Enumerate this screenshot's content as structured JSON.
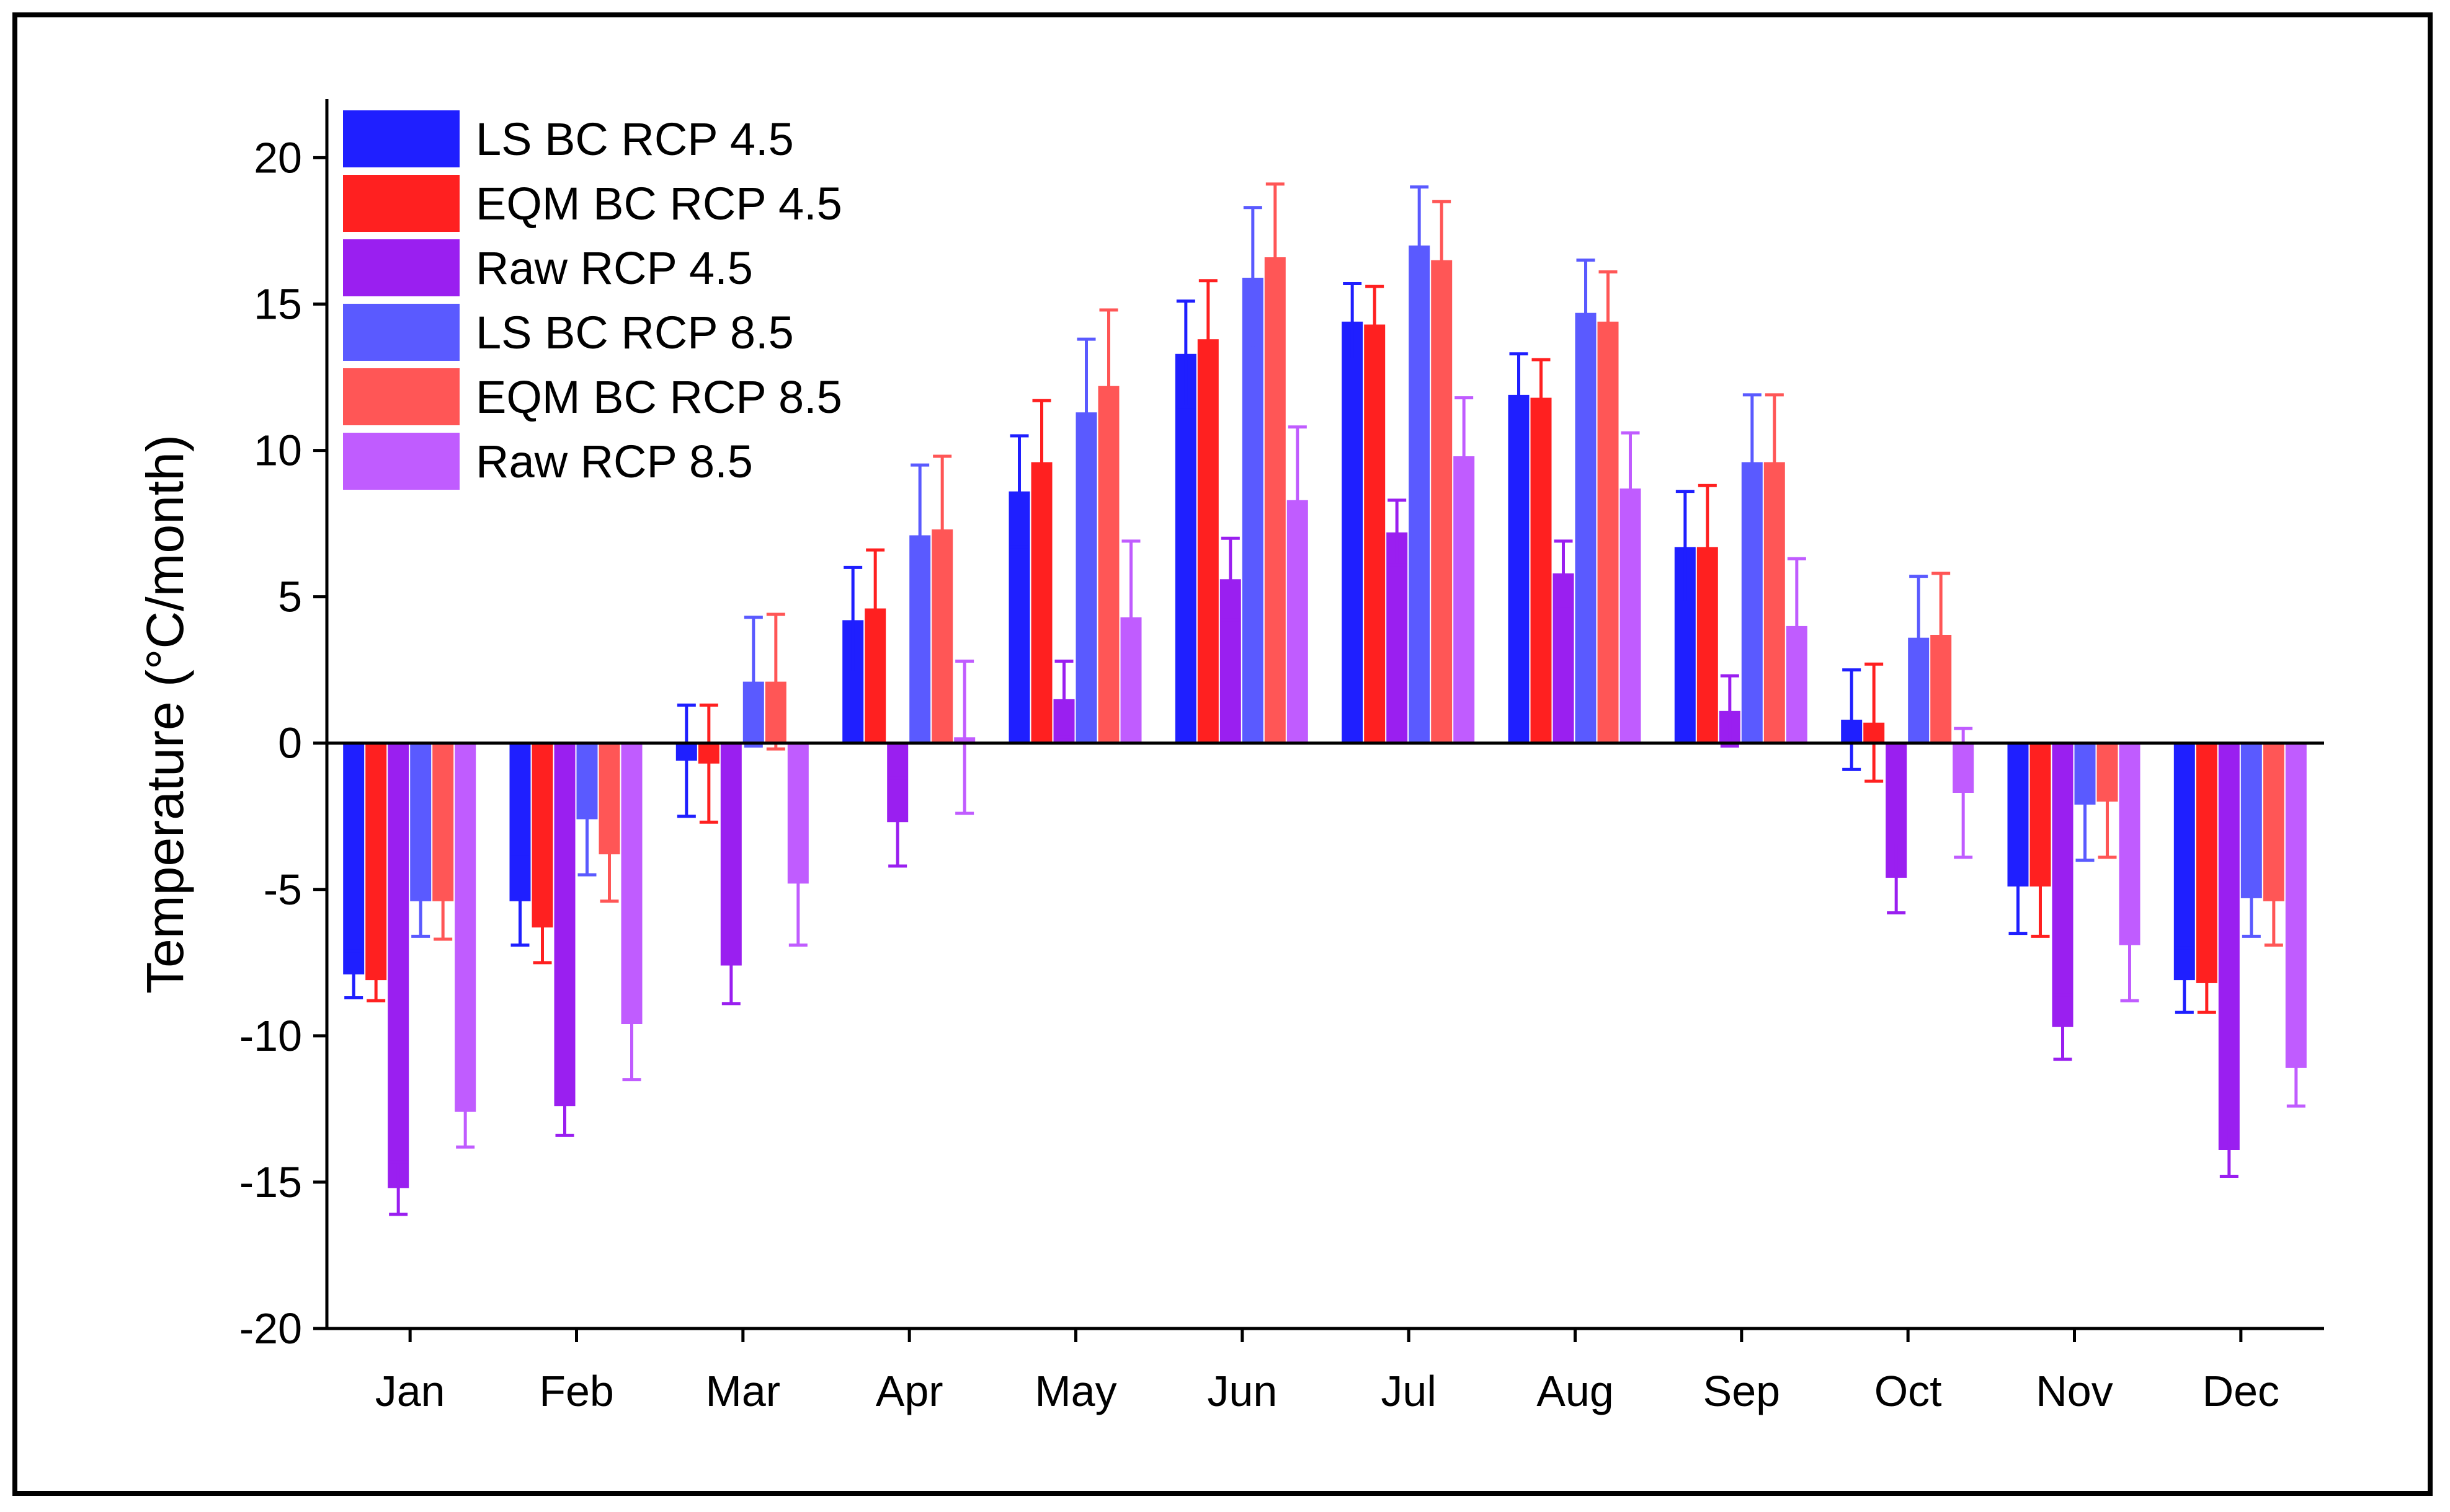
{
  "chart_data": {
    "type": "bar",
    "ylabel": "Temperature (°C/month)",
    "xlabel": "",
    "ylim": [
      -20,
      22
    ],
    "yticks": [
      -20,
      -15,
      -10,
      -5,
      0,
      5,
      10,
      15,
      20
    ],
    "legend_position": "top-left",
    "categories": [
      "Jan",
      "Feb",
      "Mar",
      "Apr",
      "May",
      "Jun",
      "Jul",
      "Aug",
      "Sep",
      "Oct",
      "Nov",
      "Dec"
    ],
    "series": [
      {
        "name": "LS BC  RCP 4.5",
        "color": "#1f1fff",
        "values": [
          -7.9,
          -5.4,
          -0.6,
          4.2,
          8.6,
          13.3,
          14.4,
          11.9,
          6.7,
          0.8,
          -4.9,
          -8.1
        ],
        "errors": [
          0.8,
          1.5,
          1.9,
          1.8,
          1.9,
          1.8,
          1.3,
          1.4,
          1.9,
          1.7,
          1.6,
          1.1
        ]
      },
      {
        "name": "EQM BC  RCP 4.5",
        "color": "#ff2020",
        "values": [
          -8.1,
          -6.3,
          -0.7,
          4.6,
          9.6,
          13.8,
          14.3,
          11.8,
          6.7,
          0.7,
          -4.9,
          -8.2
        ],
        "errors": [
          0.7,
          1.2,
          2.0,
          2.0,
          2.1,
          2.0,
          1.3,
          1.3,
          2.1,
          2.0,
          1.7,
          1.0
        ]
      },
      {
        "name": "Raw  RCP 4.5",
        "color": "#9a1ff0",
        "values": [
          -15.2,
          -12.4,
          -7.6,
          -2.7,
          1.5,
          5.6,
          7.2,
          5.8,
          1.1,
          -4.6,
          -9.7,
          -13.9
        ],
        "errors": [
          0.9,
          1.0,
          1.3,
          1.5,
          1.3,
          1.4,
          1.1,
          1.1,
          1.2,
          1.2,
          1.1,
          0.9
        ]
      },
      {
        "name": "LS BC  RCP 8.5",
        "color": "#5a5aff",
        "values": [
          -5.4,
          -2.6,
          2.1,
          7.1,
          11.3,
          15.9,
          17.0,
          14.7,
          9.6,
          3.6,
          -2.1,
          -5.3
        ],
        "errors": [
          1.2,
          1.9,
          2.2,
          2.4,
          2.5,
          2.4,
          2.0,
          1.8,
          2.3,
          2.1,
          1.9,
          1.3
        ]
      },
      {
        "name": "EQM BC  RCP 8.5",
        "color": "#ff5656",
        "values": [
          -5.4,
          -3.8,
          2.1,
          7.3,
          12.2,
          16.6,
          16.5,
          14.4,
          9.6,
          3.7,
          -2.0,
          -5.4
        ],
        "errors": [
          1.3,
          1.6,
          2.3,
          2.5,
          2.6,
          2.5,
          2.0,
          1.7,
          2.3,
          2.1,
          1.9,
          1.5
        ]
      },
      {
        "name": "Raw  RCP 8.5",
        "color": "#c05cff",
        "values": [
          -12.6,
          -9.6,
          -4.8,
          0.2,
          4.3,
          8.3,
          9.8,
          8.7,
          4.0,
          -1.7,
          -6.9,
          -11.1
        ],
        "errors": [
          1.2,
          1.9,
          2.1,
          2.6,
          2.6,
          2.5,
          2.0,
          1.9,
          2.3,
          2.2,
          1.9,
          1.3
        ]
      }
    ]
  }
}
